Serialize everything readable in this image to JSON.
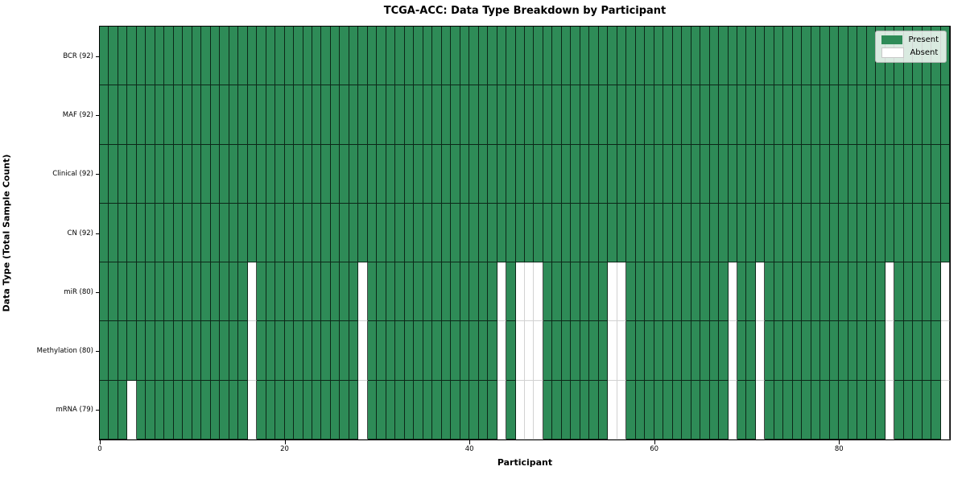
{
  "chart_data": {
    "type": "heatmap",
    "title": "TCGA-ACC: Data Type Breakdown by Participant",
    "xlabel": "Participant",
    "ylabel": "Data Type (Total Sample Count)",
    "n_participants": 92,
    "x_ticks": [
      0,
      20,
      40,
      60,
      80
    ],
    "x_range": [
      0,
      92
    ],
    "grid": "cell-mesh",
    "legend_position": "upper right",
    "colors": {
      "present": "#2e8b57",
      "absent": "#ffffff",
      "present_edge": "rgba(0,0,0,0.72)",
      "absent_edge": "#d2d2d2"
    },
    "legend": [
      {
        "label": "Present",
        "color": "#2e8b57"
      },
      {
        "label": "Absent",
        "color": "#ffffff"
      }
    ],
    "rows": [
      {
        "label": "BCR (92)",
        "data_type": "BCR",
        "present_count": 92,
        "absent_participants": []
      },
      {
        "label": "MAF (92)",
        "data_type": "MAF",
        "present_count": 92,
        "absent_participants": []
      },
      {
        "label": "Clinical (92)",
        "data_type": "Clinical",
        "present_count": 92,
        "absent_participants": []
      },
      {
        "label": "CN (92)",
        "data_type": "CN",
        "present_count": 92,
        "absent_participants": []
      },
      {
        "label": "miR (80)",
        "data_type": "miR",
        "present_count": 80,
        "absent_participants": [
          16,
          28,
          43,
          45,
          46,
          47,
          55,
          56,
          68,
          71,
          85,
          91
        ]
      },
      {
        "label": "Methylation (80)",
        "data_type": "Methylation",
        "present_count": 80,
        "absent_participants": [
          16,
          28,
          43,
          45,
          46,
          47,
          55,
          56,
          68,
          71,
          85,
          91
        ]
      },
      {
        "label": "mRNA (79)",
        "data_type": "mRNA",
        "present_count": 79,
        "absent_participants": [
          3,
          16,
          28,
          43,
          45,
          46,
          47,
          55,
          56,
          68,
          71,
          85,
          91
        ]
      }
    ]
  }
}
